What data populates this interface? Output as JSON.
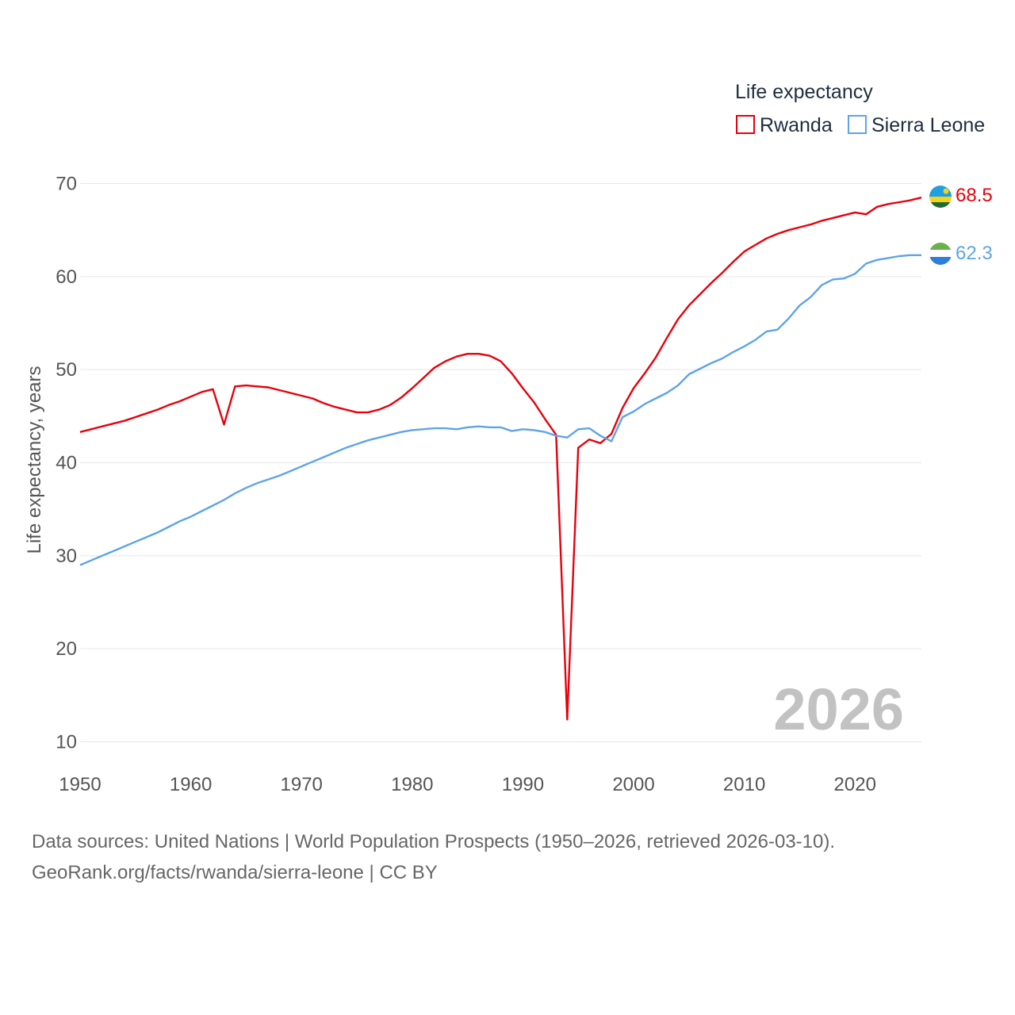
{
  "chart_data": {
    "type": "line",
    "title": "",
    "legend_title": "Life expectancy",
    "xlabel": "",
    "ylabel": "Life expectancy, years",
    "xlim": [
      1950,
      2026
    ],
    "ylim": [
      10,
      70
    ],
    "x_ticks": [
      1950,
      1960,
      1970,
      1980,
      1990,
      2000,
      2010,
      2020
    ],
    "y_ticks": [
      10,
      20,
      30,
      40,
      50,
      60,
      70
    ],
    "grid": true,
    "legend_position": "top-right",
    "year_label": "2026",
    "series": [
      {
        "name": "Rwanda",
        "color": "#e8000b",
        "end_label": "68.5",
        "flag": "rwanda-flag",
        "x": [
          1950,
          1951,
          1952,
          1953,
          1954,
          1955,
          1956,
          1957,
          1958,
          1959,
          1960,
          1961,
          1962,
          1963,
          1964,
          1965,
          1966,
          1967,
          1968,
          1969,
          1970,
          1971,
          1972,
          1973,
          1974,
          1975,
          1976,
          1977,
          1978,
          1979,
          1980,
          1981,
          1982,
          1983,
          1984,
          1985,
          1986,
          1987,
          1988,
          1989,
          1990,
          1991,
          1992,
          1993,
          1994,
          1995,
          1996,
          1997,
          1998,
          1999,
          2000,
          2001,
          2002,
          2003,
          2004,
          2005,
          2006,
          2007,
          2008,
          2009,
          2010,
          2011,
          2012,
          2013,
          2014,
          2015,
          2016,
          2017,
          2018,
          2019,
          2020,
          2021,
          2022,
          2023,
          2024,
          2025,
          2026
        ],
        "values": [
          43.3,
          43.6,
          43.9,
          44.2,
          44.5,
          44.9,
          45.3,
          45.7,
          46.2,
          46.6,
          47.1,
          47.6,
          47.9,
          44.1,
          48.2,
          48.3,
          48.2,
          48.1,
          47.8,
          47.5,
          47.2,
          46.9,
          46.4,
          46.0,
          45.7,
          45.4,
          45.4,
          45.7,
          46.2,
          47.0,
          48.0,
          49.1,
          50.2,
          50.9,
          51.4,
          51.7,
          51.7,
          51.5,
          50.9,
          49.6,
          48.0,
          46.5,
          44.7,
          43.0,
          12.4,
          41.6,
          42.5,
          42.1,
          43.1,
          45.9,
          48.0,
          49.6,
          51.3,
          53.4,
          55.4,
          56.9,
          58.1,
          59.3,
          60.4,
          61.6,
          62.7,
          63.4,
          64.1,
          64.6,
          65.0,
          65.3,
          65.6,
          66.0,
          66.3,
          66.6,
          66.9,
          66.7,
          67.5,
          67.8,
          68.0,
          68.2,
          68.5
        ]
      },
      {
        "name": "Sierra Leone",
        "color": "#5ea4e6",
        "end_label": "62.3",
        "flag": "sierra-leone-flag",
        "x": [
          1950,
          1951,
          1952,
          1953,
          1954,
          1955,
          1956,
          1957,
          1958,
          1959,
          1960,
          1961,
          1962,
          1963,
          1964,
          1965,
          1966,
          1967,
          1968,
          1969,
          1970,
          1971,
          1972,
          1973,
          1974,
          1975,
          1976,
          1977,
          1978,
          1979,
          1980,
          1981,
          1982,
          1983,
          1984,
          1985,
          1986,
          1987,
          1988,
          1989,
          1990,
          1991,
          1992,
          1993,
          1994,
          1995,
          1996,
          1997,
          1998,
          1999,
          2000,
          2001,
          2002,
          2003,
          2004,
          2005,
          2006,
          2007,
          2008,
          2009,
          2010,
          2011,
          2012,
          2013,
          2014,
          2015,
          2016,
          2017,
          2018,
          2019,
          2020,
          2021,
          2022,
          2023,
          2024,
          2025,
          2026
        ],
        "values": [
          29.0,
          29.5,
          30.0,
          30.5,
          31.0,
          31.5,
          32.0,
          32.5,
          33.1,
          33.7,
          34.2,
          34.8,
          35.4,
          36.0,
          36.7,
          37.3,
          37.8,
          38.2,
          38.6,
          39.1,
          39.6,
          40.1,
          40.6,
          41.1,
          41.6,
          42.0,
          42.4,
          42.7,
          43.0,
          43.3,
          43.5,
          43.6,
          43.7,
          43.7,
          43.6,
          43.8,
          43.9,
          43.8,
          43.8,
          43.4,
          43.6,
          43.5,
          43.3,
          42.9,
          42.7,
          43.6,
          43.7,
          42.9,
          42.3,
          44.9,
          45.5,
          46.3,
          46.9,
          47.5,
          48.3,
          49.5,
          50.1,
          50.7,
          51.2,
          51.9,
          52.5,
          53.2,
          54.1,
          54.3,
          55.5,
          56.9,
          57.8,
          59.1,
          59.7,
          59.8,
          60.3,
          61.4,
          61.8,
          62.0,
          62.2,
          62.3,
          62.3
        ]
      }
    ]
  },
  "footer": {
    "line1": "Data sources: United Nations | World Population Prospects (1950–2026, retrieved 2026-03-10).",
    "line2": "GeoRank.org/facts/rwanda/sierra-leone | CC BY"
  }
}
